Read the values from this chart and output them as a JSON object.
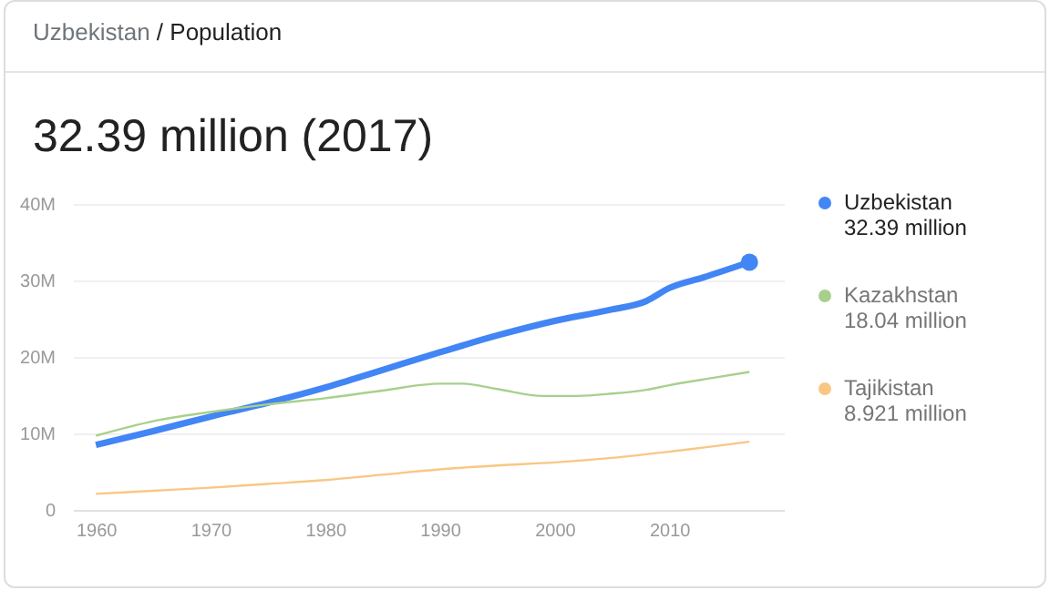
{
  "chart_data": {
    "type": "line",
    "subtitle": "Uzbekistan / Population",
    "title": "32.39 million (2017)",
    "xlim": [
      1958,
      2020
    ],
    "xticks": [
      1960,
      1970,
      1980,
      1990,
      2000,
      2010
    ],
    "ylim": [
      0,
      40
    ],
    "yticks": [
      {
        "value": 0,
        "label": "0"
      },
      {
        "value": 10,
        "label": "10M"
      },
      {
        "value": 20,
        "label": "20M"
      },
      {
        "value": 30,
        "label": "30M"
      },
      {
        "value": 40,
        "label": "40M"
      }
    ],
    "grid": "y",
    "legend": "right",
    "marker": "none",
    "series": [
      {
        "name": "Uzbekistan",
        "color": "#4285f4",
        "x": [
          1960,
          1965,
          1970,
          1975,
          1980,
          1985,
          1990,
          1995,
          2000,
          2005,
          2008,
          2010,
          2013,
          2017
        ],
        "values": [
          8.5,
          10.3,
          12.2,
          14.0,
          16.0,
          18.3,
          20.6,
          22.8,
          24.7,
          26.2,
          27.3,
          29.0,
          30.4,
          32.39
        ]
      },
      {
        "name": "Kazakhstan",
        "color": "#a8d08d",
        "x": [
          1960,
          1965,
          1970,
          1975,
          1980,
          1985,
          1990,
          1992,
          1995,
          1999,
          2002,
          2005,
          2008,
          2010,
          2014,
          2017
        ],
        "values": [
          9.7,
          11.6,
          12.8,
          13.8,
          14.6,
          15.6,
          16.5,
          16.5,
          15.8,
          14.9,
          14.9,
          15.2,
          15.7,
          16.3,
          17.3,
          18.04
        ]
      },
      {
        "name": "Tajikistan",
        "color": "#f9c784",
        "x": [
          1960,
          1965,
          1970,
          1975,
          1980,
          1985,
          1990,
          1995,
          2000,
          2005,
          2010,
          2017
        ],
        "values": [
          2.1,
          2.5,
          2.9,
          3.4,
          3.9,
          4.6,
          5.3,
          5.8,
          6.2,
          6.8,
          7.6,
          8.921
        ]
      }
    ],
    "annotations": [
      "32.39 million",
      "18.04 million",
      "8.921 million"
    ]
  }
}
